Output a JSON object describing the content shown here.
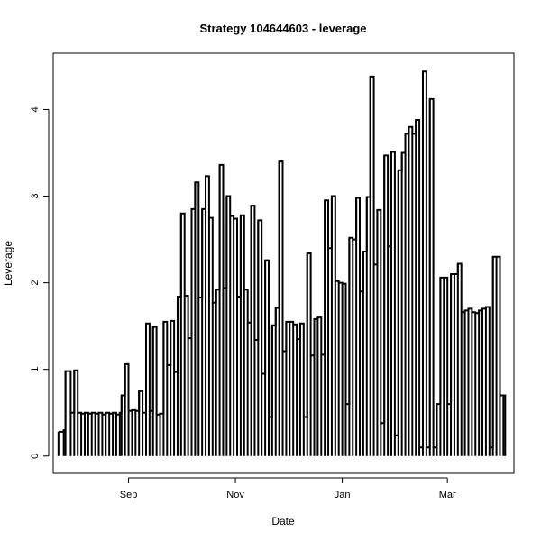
{
  "chart_data": {
    "type": "line",
    "title": "Strategy 104644603 - leverage",
    "xlabel": "Date",
    "ylabel": "Leverage",
    "xlim": [
      "2011-07-20",
      "2012-04-08"
    ],
    "ylim": [
      -0.2,
      4.65
    ],
    "grid": false,
    "x_ticks": [
      {
        "date": "2011-09-01",
        "label": "Sep"
      },
      {
        "date": "2011-11-01",
        "label": "Nov"
      },
      {
        "date": "2012-01-01",
        "label": "Jan"
      },
      {
        "date": "2012-03-01",
        "label": "Mar"
      }
    ],
    "y_ticks": [
      0,
      1,
      2,
      3,
      4
    ],
    "series": [
      {
        "color": "#000000",
        "x": [
          "2011-07-23",
          "2011-07-26",
          "2011-07-27",
          "2011-07-30",
          "2011-08-01",
          "2011-08-03",
          "2011-08-05",
          "2011-08-07",
          "2011-08-09",
          "2011-08-11",
          "2011-08-13",
          "2011-08-15",
          "2011-08-17",
          "2011-08-19",
          "2011-08-21",
          "2011-08-23",
          "2011-08-25",
          "2011-08-27",
          "2011-08-28",
          "2011-08-30",
          "2011-09-01",
          "2011-09-03",
          "2011-09-05",
          "2011-09-07",
          "2011-09-09",
          "2011-09-11",
          "2011-09-13",
          "2011-09-15",
          "2011-09-17",
          "2011-09-19",
          "2011-09-21",
          "2011-09-23",
          "2011-09-25",
          "2011-09-27",
          "2011-09-29",
          "2011-10-01",
          "2011-10-03",
          "2011-10-05",
          "2011-10-07",
          "2011-10-09",
          "2011-10-11",
          "2011-10-13",
          "2011-10-15",
          "2011-10-17",
          "2011-10-19",
          "2011-10-21",
          "2011-10-23",
          "2011-10-25",
          "2011-10-27",
          "2011-10-29",
          "2011-10-31",
          "2011-11-02",
          "2011-11-04",
          "2011-11-06",
          "2011-11-08",
          "2011-11-10",
          "2011-11-12",
          "2011-11-14",
          "2011-11-16",
          "2011-11-18",
          "2011-11-20",
          "2011-11-22",
          "2011-11-24",
          "2011-11-26",
          "2011-11-28",
          "2011-11-30",
          "2011-12-02",
          "2011-12-04",
          "2011-12-06",
          "2011-12-08",
          "2011-12-10",
          "2011-12-12",
          "2011-12-14",
          "2011-12-16",
          "2011-12-18",
          "2011-12-20",
          "2011-12-22",
          "2011-12-24",
          "2011-12-26",
          "2011-12-28",
          "2011-12-30",
          "2012-01-01",
          "2012-01-03",
          "2012-01-05",
          "2012-01-07",
          "2012-01-09",
          "2012-01-11",
          "2012-01-13",
          "2012-01-15",
          "2012-01-17",
          "2012-01-19",
          "2012-01-21",
          "2012-01-23",
          "2012-01-25",
          "2012-01-27",
          "2012-01-29",
          "2012-01-31",
          "2012-02-02",
          "2012-02-04",
          "2012-02-06",
          "2012-02-08",
          "2012-02-10",
          "2012-02-12",
          "2012-02-14",
          "2012-02-16",
          "2012-02-18",
          "2012-02-20",
          "2012-02-22",
          "2012-02-24",
          "2012-02-26",
          "2012-02-28",
          "2012-03-01",
          "2012-03-03",
          "2012-03-05",
          "2012-03-07",
          "2012-03-09",
          "2012-03-11",
          "2012-03-13",
          "2012-03-15",
          "2012-03-17",
          "2012-03-19",
          "2012-03-21",
          "2012-03-23",
          "2012-03-25",
          "2012-03-27",
          "2012-03-29",
          "2012-03-31",
          "2012-04-02",
          "2012-04-03"
        ],
        "values": [
          0.28,
          0.3,
          0.98,
          0.5,
          0.99,
          0.5,
          0.49,
          0.5,
          0.49,
          0.5,
          0.49,
          0.5,
          0.48,
          0.5,
          0.49,
          0.5,
          0.48,
          0.5,
          0.7,
          1.06,
          0.52,
          0.53,
          0.52,
          0.75,
          0.5,
          1.53,
          0.52,
          1.49,
          0.48,
          0.49,
          1.55,
          1.05,
          1.56,
          0.97,
          1.84,
          2.8,
          1.85,
          1.36,
          2.85,
          3.16,
          1.83,
          2.85,
          3.23,
          2.75,
          1.77,
          1.92,
          3.36,
          1.94,
          3.0,
          2.77,
          2.74,
          1.84,
          2.78,
          1.92,
          1.54,
          2.89,
          1.34,
          2.72,
          0.95,
          2.26,
          0.45,
          1.51,
          1.71,
          3.4,
          1.21,
          1.55,
          1.55,
          1.52,
          1.35,
          1.53,
          0.45,
          2.34,
          1.16,
          1.58,
          1.6,
          1.17,
          2.95,
          2.4,
          3.0,
          2.02,
          2.0,
          1.99,
          0.6,
          2.52,
          2.5,
          2.98,
          1.9,
          2.36,
          2.99,
          4.38,
          2.21,
          2.84,
          0.38,
          3.47,
          2.42,
          3.51,
          0.24,
          3.3,
          3.5,
          3.72,
          3.8,
          3.72,
          3.88,
          0.1,
          4.44,
          0.1,
          4.12,
          0.1,
          0.6,
          2.06,
          2.06,
          0.6,
          2.1,
          2.1,
          2.22,
          1.66,
          1.68,
          1.7,
          1.66,
          1.65,
          1.68,
          1.7,
          1.72,
          0.1,
          2.3,
          2.3,
          0.7,
          0.7,
          0.1
        ]
      }
    ]
  }
}
